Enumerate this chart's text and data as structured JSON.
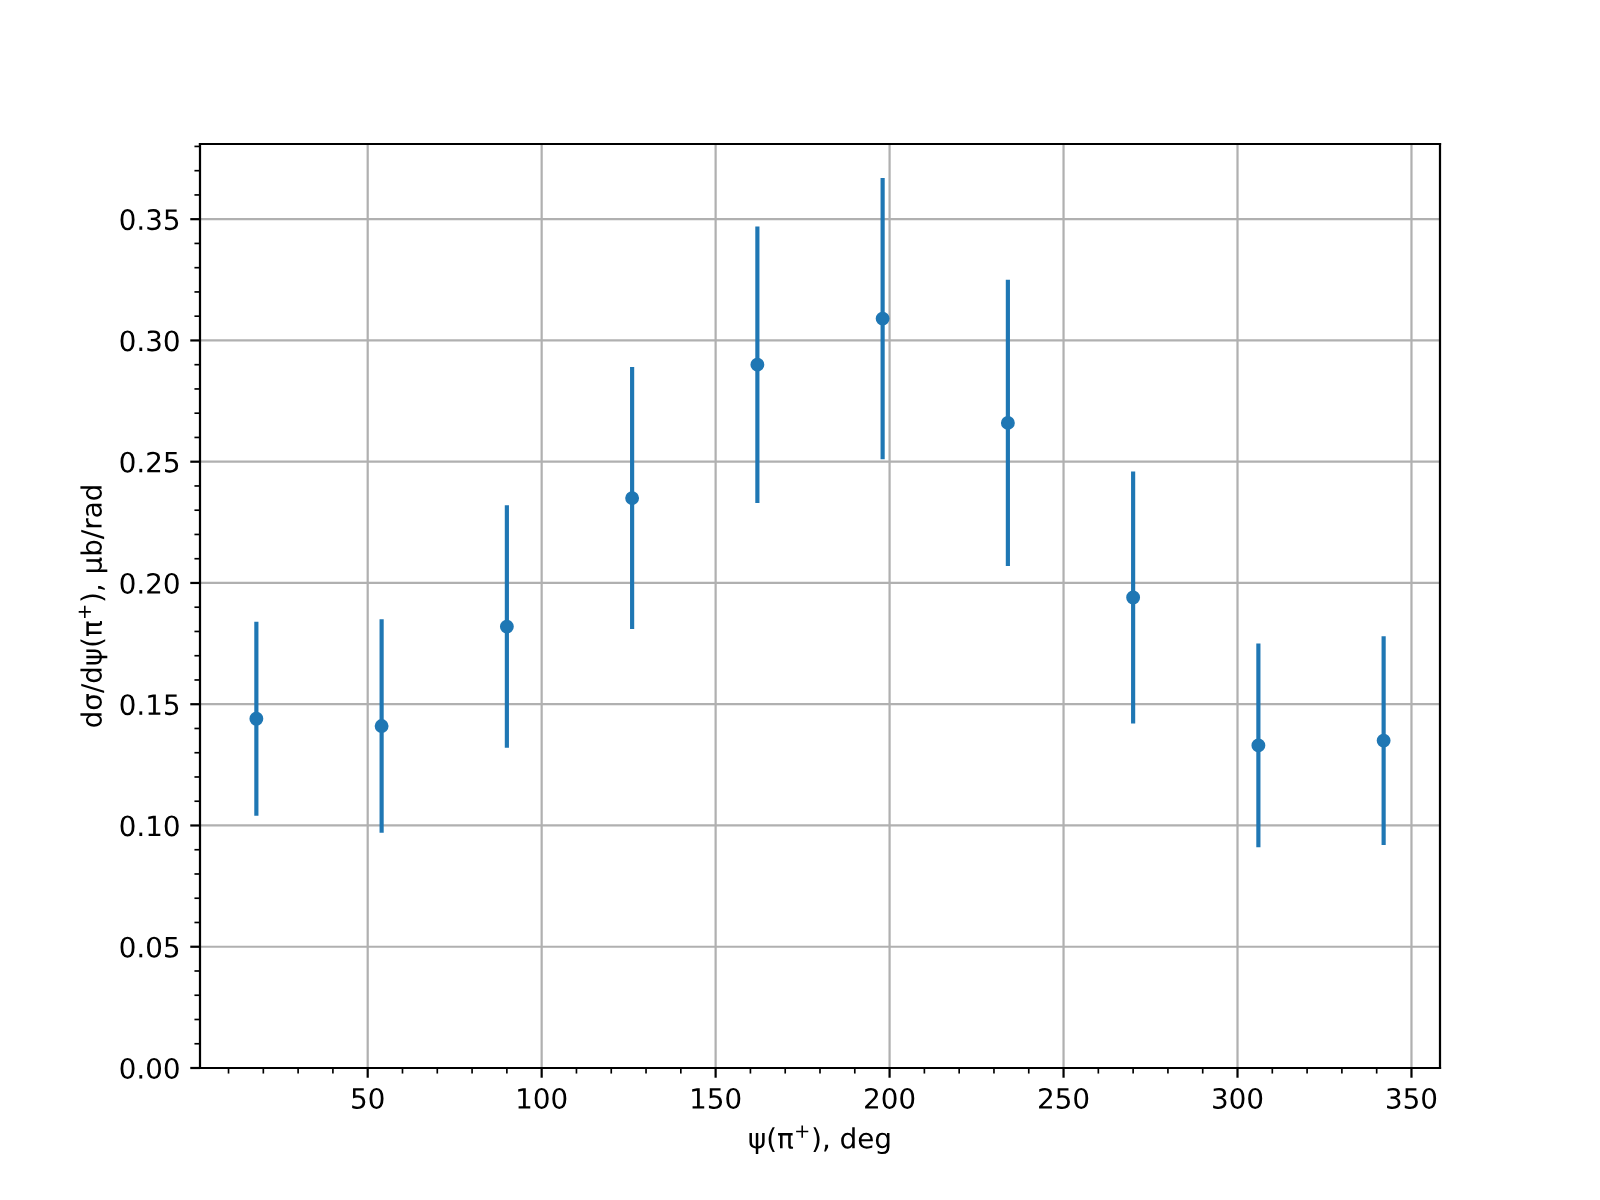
{
  "chart_data": {
    "type": "scatter",
    "xlabel": "ψ(π$^{+}$), deg",
    "ylabel": "dσ/dψ(π$^{+}$), μb/rad",
    "x": [
      18,
      54,
      90,
      126,
      162,
      198,
      234,
      270,
      306,
      342
    ],
    "values": [
      0.144,
      0.141,
      0.182,
      0.235,
      0.29,
      0.309,
      0.266,
      0.194,
      0.133,
      0.135
    ],
    "errors": [
      0.04,
      0.044,
      0.05,
      0.054,
      0.057,
      0.058,
      0.059,
      0.052,
      0.042,
      0.043
    ],
    "color": "#1f77b4",
    "marker": "circle",
    "xlim": [
      1.8,
      358.2
    ],
    "xticks": [
      50,
      100,
      150,
      200,
      250,
      300,
      350
    ],
    "ylim": [
      0,
      0.381
    ],
    "yticks": [
      {
        "value": 0,
        "label": "0.00"
      },
      {
        "value": 0.05,
        "label": "0.05"
      },
      {
        "value": 0.1,
        "label": "0.10"
      },
      {
        "value": 0.15,
        "label": "0.15"
      },
      {
        "value": 0.2,
        "label": "0.20"
      },
      {
        "value": 0.25,
        "label": "0.25"
      },
      {
        "value": 0.3,
        "label": "0.30"
      },
      {
        "value": 0.35,
        "label": "0.35"
      }
    ],
    "grid": true
  }
}
